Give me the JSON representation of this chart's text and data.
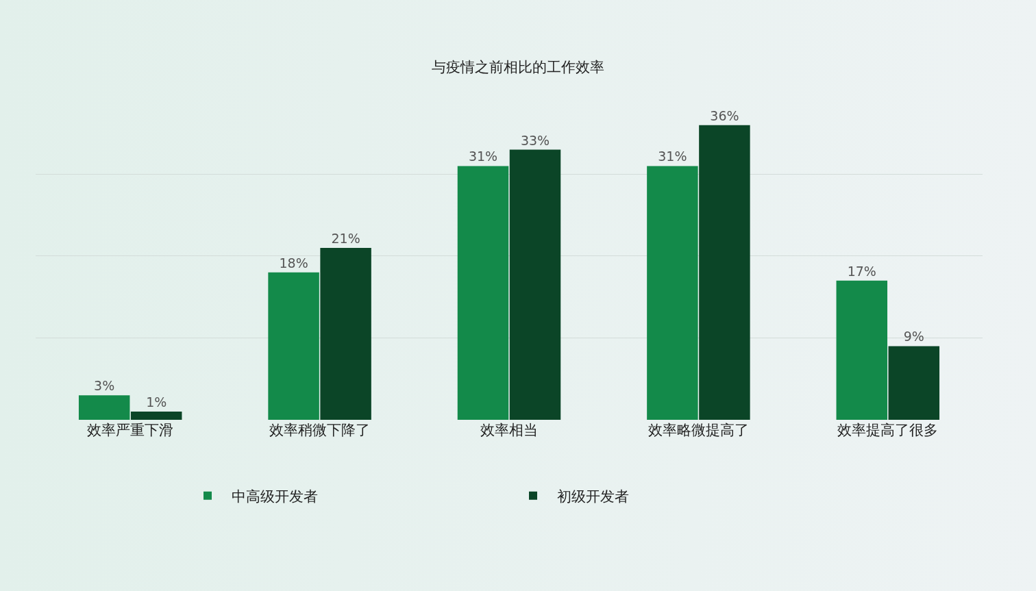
{
  "chart_data": {
    "type": "bar",
    "title": "与疫情之前相比的工作效率",
    "categories": [
      "效率严重下滑",
      "效率稍微下降了",
      "效率相当",
      "效率略微提高了",
      "效率提高了很多"
    ],
    "series": [
      {
        "name": "中高级开发者",
        "color": "#138a4a",
        "values": [
          3,
          18,
          31,
          31,
          17
        ],
        "value_labels": [
          "3%",
          "18%",
          "31%",
          "31%",
          "17%"
        ]
      },
      {
        "name": "初级开发者",
        "color": "#0b4527",
        "values": [
          1,
          21,
          33,
          36,
          9
        ],
        "value_labels": [
          "1%",
          "21%",
          "33%",
          "36%",
          "9%"
        ]
      }
    ],
    "grid": "y",
    "legend": "bottom",
    "tick_labels": "x"
  }
}
